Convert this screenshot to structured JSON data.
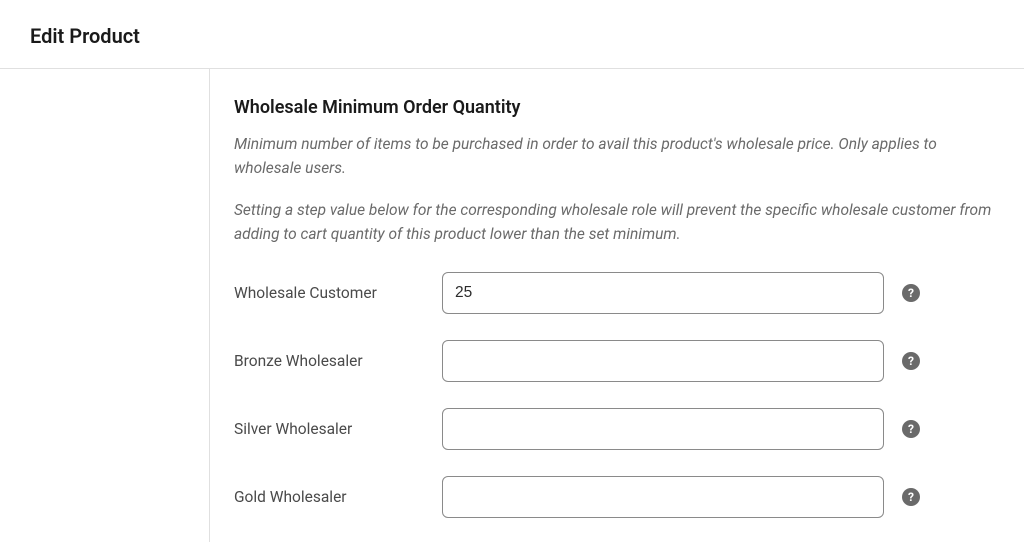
{
  "header": {
    "title": "Edit Product"
  },
  "section": {
    "title": "Wholesale Minimum Order Quantity",
    "description1": "Minimum number of items to be purchased in order to avail this product's wholesale price. Only applies to wholesale users.",
    "description2": "Setting a step value below for the corresponding wholesale role will prevent the specific wholesale customer from adding to cart quantity of this product lower than the set minimum."
  },
  "fields": {
    "wholesale_customer": {
      "label": "Wholesale Customer",
      "value": "25"
    },
    "bronze": {
      "label": "Bronze Wholesaler",
      "value": ""
    },
    "silver": {
      "label": "Silver Wholesaler",
      "value": ""
    },
    "gold": {
      "label": "Gold Wholesaler",
      "value": ""
    }
  },
  "help_icon_glyph": "?"
}
